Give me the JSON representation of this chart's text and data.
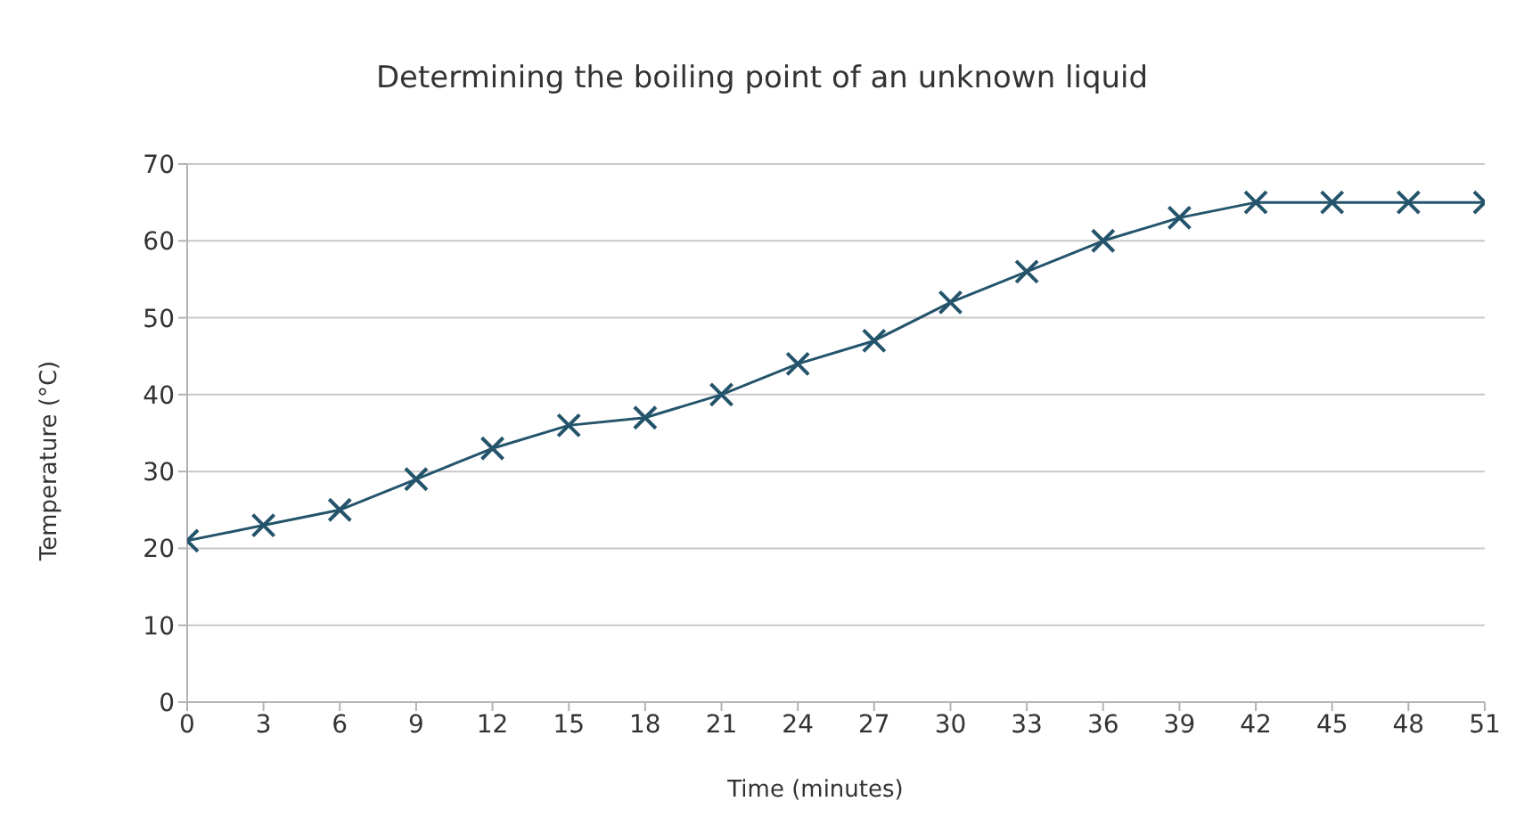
{
  "chart_data": {
    "type": "line",
    "title": "Determining the boiling point of an unknown liquid",
    "xlabel": "Time (minutes)",
    "ylabel": "Temperature (°C)",
    "x": [
      0,
      3,
      6,
      9,
      12,
      15,
      18,
      21,
      24,
      27,
      30,
      33,
      36,
      39,
      42,
      45,
      48,
      51
    ],
    "series": [
      {
        "color": "#24546b",
        "values": [
          21,
          23,
          25,
          29,
          33,
          36,
          37,
          40,
          44,
          47,
          52,
          56,
          60,
          63,
          65,
          65,
          65,
          65
        ]
      }
    ],
    "xlim": [
      0,
      51
    ],
    "xticks": [
      0,
      3,
      6,
      9,
      12,
      15,
      18,
      21,
      24,
      27,
      30,
      33,
      36,
      39,
      42,
      45,
      48,
      51
    ],
    "ylim": [
      0,
      70
    ],
    "yticks": [
      0,
      10,
      20,
      30,
      40,
      50,
      60,
      70
    ],
    "grid": "y",
    "legend": false,
    "marker": "cross",
    "line_style": "solid"
  }
}
